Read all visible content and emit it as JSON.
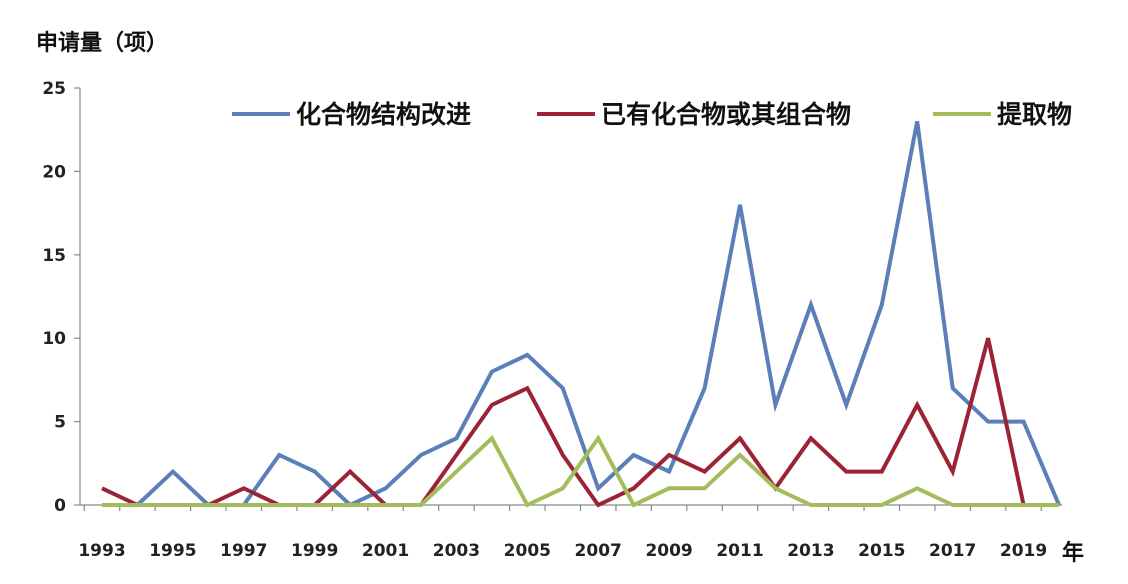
{
  "chart_data": {
    "type": "line",
    "ylabel": "申请量（项）",
    "xunit": "年",
    "ylim": [
      0,
      25
    ],
    "yticks": [
      0,
      5,
      10,
      15,
      20,
      25
    ],
    "x": [
      1993,
      1994,
      1995,
      1996,
      1997,
      1998,
      1999,
      2000,
      2001,
      2002,
      2003,
      2004,
      2005,
      2006,
      2007,
      2008,
      2009,
      2010,
      2011,
      2012,
      2013,
      2014,
      2015,
      2016,
      2017,
      2018,
      2019,
      2020
    ],
    "xticks": [
      1993,
      1995,
      1997,
      1999,
      2001,
      2003,
      2005,
      2007,
      2009,
      2011,
      2013,
      2015,
      2017,
      2019
    ],
    "legend_position": "top",
    "grid": false,
    "series": [
      {
        "name": "化合物结构改进",
        "color": "#5b7fb8",
        "values": [
          null,
          0,
          2,
          0,
          0,
          3,
          2,
          0,
          1,
          3,
          4,
          8,
          9,
          7,
          1,
          3,
          2,
          7,
          18,
          6,
          12,
          6,
          12,
          23,
          7,
          5,
          5,
          0
        ]
      },
      {
        "name": "已有化合物或其组合物",
        "color": "#9b2335",
        "values": [
          1,
          0,
          null,
          0,
          1,
          0,
          0,
          2,
          0,
          0,
          3,
          6,
          7,
          3,
          0,
          1,
          3,
          2,
          4,
          1,
          4,
          2,
          2,
          6,
          2,
          10,
          0,
          null
        ]
      },
      {
        "name": "提取物",
        "color": "#a3bc5c",
        "values": [
          0,
          0,
          0,
          0,
          0,
          0,
          0,
          0,
          0,
          0,
          2,
          4,
          0,
          1,
          4,
          0,
          1,
          1,
          3,
          1,
          0,
          0,
          0,
          1,
          0,
          0,
          0,
          0
        ]
      }
    ]
  }
}
